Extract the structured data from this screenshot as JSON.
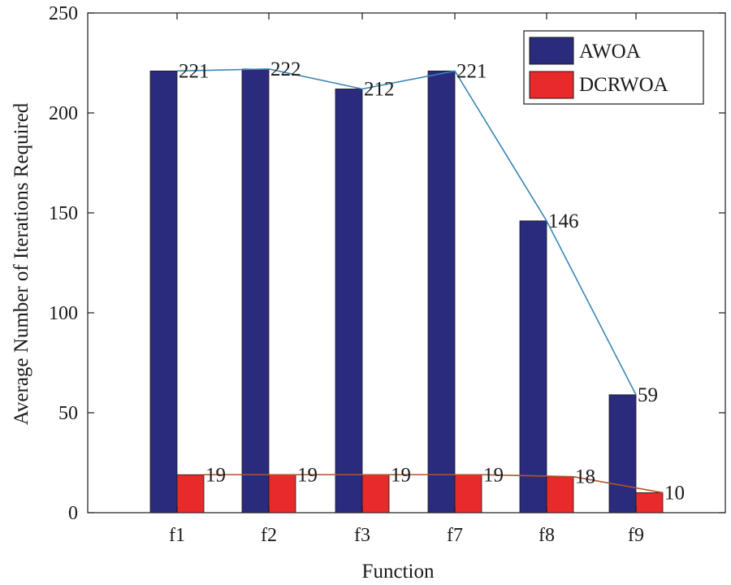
{
  "chart_data": {
    "type": "bar",
    "title": "",
    "xlabel": "Function",
    "ylabel": "Average Number of Iterations Required",
    "categories": [
      "f1",
      "f2",
      "f3",
      "f7",
      "f8",
      "f9"
    ],
    "ylim": [
      0,
      250
    ],
    "yticks": [
      "0",
      "50",
      "100",
      "150",
      "200",
      "250"
    ],
    "legend_position": "top-right",
    "grid": false,
    "series": [
      {
        "name": "AWOA",
        "values": [
          221,
          222,
          212,
          221,
          146,
          59
        ],
        "labels": [
          "221",
          "222",
          "212",
          "221",
          "146",
          "59"
        ],
        "color": "#2b2b7e",
        "line_color": "#3a86b5"
      },
      {
        "name": "DCRWOA",
        "values": [
          19,
          19,
          19,
          19,
          18,
          10
        ],
        "labels": [
          "19",
          "19",
          "19",
          "19",
          "18",
          "10"
        ],
        "color": "#e82a2a",
        "line_color": "#b0542a"
      }
    ]
  }
}
